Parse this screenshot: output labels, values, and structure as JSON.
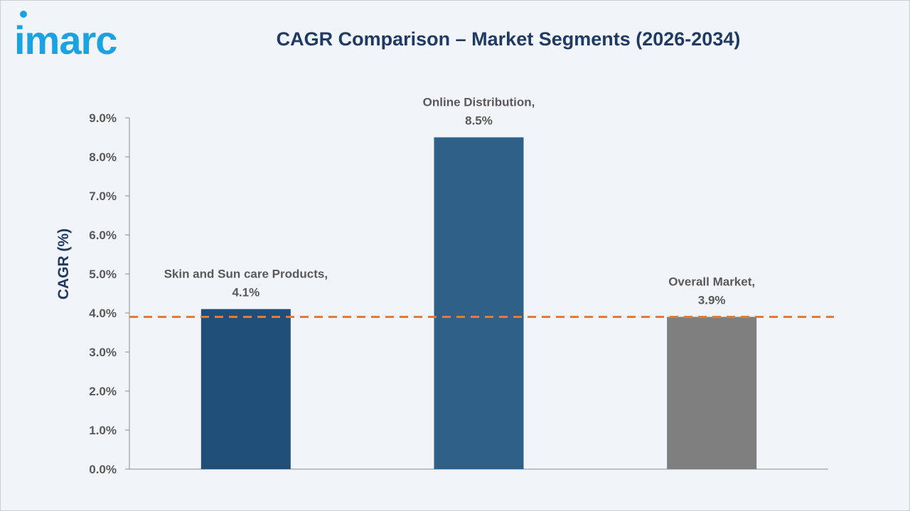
{
  "header": {
    "logo_text": "imarc",
    "title": "CAGR Comparison – Market Segments (2026-2034)"
  },
  "colors": {
    "logo": "#1aa3e0",
    "title": "#1f3b63",
    "axis": "#8c8c8c",
    "reference_line": "#e07b39"
  },
  "chart_data": {
    "type": "bar",
    "title": "CAGR Comparison – Market Segments (2026-2034)",
    "xlabel": "",
    "ylabel": "CAGR (%)",
    "ylim": [
      0,
      9
    ],
    "y_ticks": [
      0,
      1,
      2,
      3,
      4,
      5,
      6,
      7,
      8,
      9
    ],
    "y_tick_format": "percent_1dp",
    "categories": [
      "Skin and Sun care Products",
      "Online Distribution",
      "Overall Market"
    ],
    "values": [
      4.1,
      8.5,
      3.9
    ],
    "data_labels": [
      [
        "Skin and Sun care Products,",
        "4.1%"
      ],
      [
        "Online Distribution,",
        "8.5%"
      ],
      [
        "Overall Market,",
        "3.9%"
      ]
    ],
    "bar_colors": [
      "#1f4e79",
      "#2e6088",
      "#7f7f7f"
    ],
    "reference_line": {
      "value": 3.9,
      "style": "dashed",
      "color": "#e07b39"
    },
    "grid": false,
    "legend": "none"
  }
}
